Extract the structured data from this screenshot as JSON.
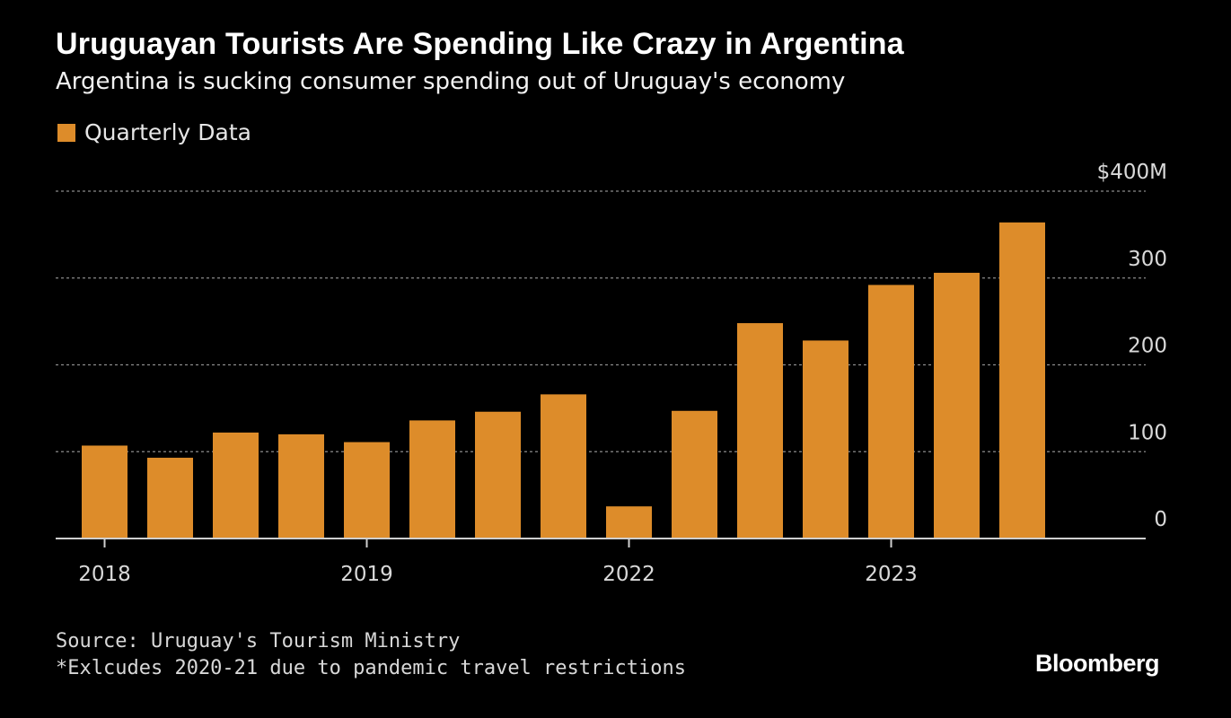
{
  "source": "Source: Uruguay's Tourism Ministry",
  "note": "*Exlcudes 2020-21 due to pandemic travel restrictions",
  "brand": "Bloomberg",
  "colors": {
    "bar": "#dd8c2a",
    "background": "#000000",
    "grid": "#8a8a8a",
    "axis": "#cfcfcf"
  },
  "chart_data": {
    "type": "bar",
    "title": "Uruguayan Tourists Are Spending Like Crazy in Argentina",
    "subtitle": "Argentina is sucking consumer spending out of Uruguay's economy",
    "series": [
      {
        "name": "Quarterly Data",
        "values": [
          107,
          93,
          122,
          120,
          111,
          136,
          146,
          166,
          37,
          147,
          248,
          228,
          292,
          306,
          364
        ]
      }
    ],
    "categories": [
      "2018 Q1",
      "2018 Q2",
      "2018 Q3",
      "2018 Q4",
      "2019 Q1",
      "2019 Q2",
      "2019 Q3",
      "2019 Q4",
      "2022 Q1",
      "2022 Q2",
      "2022 Q3",
      "2022 Q4",
      "2023 Q1",
      "2023 Q2",
      "2023 Q3"
    ],
    "x_tick_labels": [
      {
        "label": "2018",
        "index": 0
      },
      {
        "label": "2019",
        "index": 4
      },
      {
        "label": "2022",
        "index": 8
      },
      {
        "label": "2023",
        "index": 12
      }
    ],
    "y_ticks": [
      {
        "value": 0,
        "label": "0"
      },
      {
        "value": 100,
        "label": "100"
      },
      {
        "value": 200,
        "label": "200"
      },
      {
        "value": 300,
        "label": "300"
      },
      {
        "value": 400,
        "label": "$400M"
      }
    ],
    "ylim": [
      0,
      400
    ],
    "y_axis_side": "right",
    "grid": true,
    "legend_position": "top-left"
  }
}
